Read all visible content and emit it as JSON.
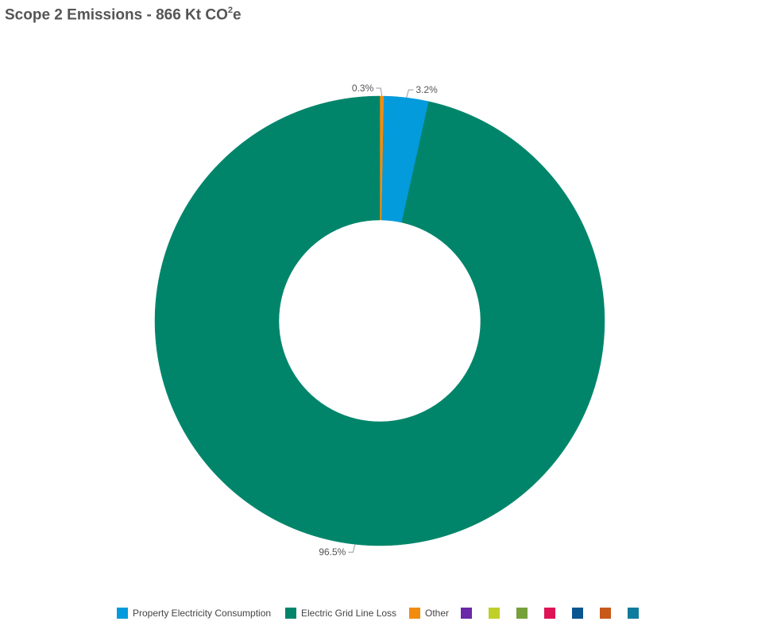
{
  "chart_data": {
    "type": "pie",
    "variant": "donut",
    "title_main": "Scope 2 Emissions - 866 Kt CO",
    "title_sup": "2",
    "title_tail": "e",
    "slices": [
      {
        "label": "Other",
        "value": 0.3,
        "display": "0.3%",
        "color": "#F28C0F"
      },
      {
        "label": "Property Electricity Consumption",
        "value": 3.2,
        "display": "3.2%",
        "color": "#039BDC"
      },
      {
        "label": "Electric Grid Line Loss",
        "value": 96.5,
        "display": "96.5%",
        "color": "#00856A"
      }
    ],
    "legend_placement": "bottom-center",
    "legend": [
      {
        "label": "Property Electricity Consumption",
        "color": "#039BDC"
      },
      {
        "label": "Electric Grid Line Loss",
        "color": "#00856A"
      },
      {
        "label": "Other",
        "color": "#F28C0F"
      },
      {
        "label": "",
        "color": "#6A28A8"
      },
      {
        "label": "",
        "color": "#C0CF2A"
      },
      {
        "label": "",
        "color": "#76A13A"
      },
      {
        "label": "",
        "color": "#DE1456"
      },
      {
        "label": "",
        "color": "#08558F"
      },
      {
        "label": "",
        "color": "#C9591B"
      },
      {
        "label": "",
        "color": "#0E7C9C"
      }
    ]
  }
}
